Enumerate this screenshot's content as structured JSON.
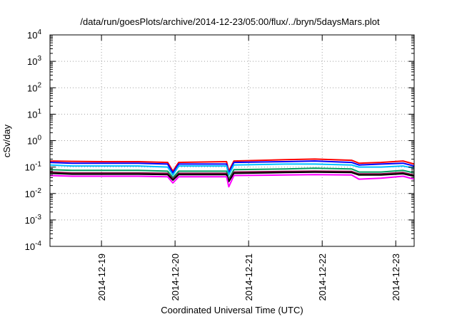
{
  "chart_data": {
    "type": "line",
    "title": "/data/run/goesPlots/archive/2014-12-23/05:00/flux/../bryn/5daysMars.plot",
    "xlabel": "Coordinated Universal Time (UTC)",
    "ylabel": "cSv/day",
    "yscale": "log",
    "ylim": [
      0.0001,
      10000
    ],
    "xlim": [
      18.3,
      23.25
    ],
    "y_ticks": [
      {
        "base": "10",
        "exp": "4",
        "value": 10000
      },
      {
        "base": "10",
        "exp": "3",
        "value": 1000
      },
      {
        "base": "10",
        "exp": "2",
        "value": 100
      },
      {
        "base": "10",
        "exp": "1",
        "value": 10
      },
      {
        "base": "10",
        "exp": "0",
        "value": 1
      },
      {
        "base": "10",
        "exp": "-1",
        "value": 0.1
      },
      {
        "base": "10",
        "exp": "-2",
        "value": 0.01
      },
      {
        "base": "10",
        "exp": "-3",
        "value": 0.001
      },
      {
        "base": "10",
        "exp": "-4",
        "value": 0.0001
      }
    ],
    "x_ticks": [
      {
        "label": "2014-12-19",
        "value": 19
      },
      {
        "label": "2014-12-20",
        "value": 20
      },
      {
        "label": "2014-12-21",
        "value": 21
      },
      {
        "label": "2014-12-22",
        "value": 22
      },
      {
        "label": "2014-12-23",
        "value": 23
      }
    ],
    "grid": true,
    "legend": "none",
    "x_units_note": "",
    "series": [
      {
        "color": "#ff0000",
        "values": [
          [
            18.3,
            0.17
          ],
          [
            18.6,
            0.165
          ],
          [
            19.0,
            0.16
          ],
          [
            19.5,
            0.16
          ],
          [
            19.9,
            0.15
          ],
          [
            19.97,
            0.07
          ],
          [
            20.05,
            0.15
          ],
          [
            20.7,
            0.16
          ],
          [
            20.73,
            0.07
          ],
          [
            20.8,
            0.17
          ],
          [
            21.5,
            0.19
          ],
          [
            21.9,
            0.2
          ],
          [
            22.4,
            0.18
          ],
          [
            22.5,
            0.14
          ],
          [
            22.8,
            0.15
          ],
          [
            23.1,
            0.17
          ],
          [
            23.25,
            0.13
          ]
        ]
      },
      {
        "color": "#0000ff",
        "values": [
          [
            18.3,
            0.15
          ],
          [
            18.6,
            0.14
          ],
          [
            19.0,
            0.14
          ],
          [
            19.5,
            0.14
          ],
          [
            19.9,
            0.13
          ],
          [
            19.97,
            0.06
          ],
          [
            20.05,
            0.13
          ],
          [
            20.7,
            0.13
          ],
          [
            20.73,
            0.06
          ],
          [
            20.8,
            0.15
          ],
          [
            21.5,
            0.16
          ],
          [
            21.9,
            0.17
          ],
          [
            22.4,
            0.15
          ],
          [
            22.5,
            0.12
          ],
          [
            22.8,
            0.13
          ],
          [
            23.1,
            0.14
          ],
          [
            23.25,
            0.11
          ]
        ]
      },
      {
        "color": "#00bfff",
        "values": [
          [
            18.3,
            0.12
          ],
          [
            18.6,
            0.11
          ],
          [
            19.0,
            0.11
          ],
          [
            19.5,
            0.11
          ],
          [
            19.9,
            0.1
          ],
          [
            19.97,
            0.05
          ],
          [
            20.05,
            0.11
          ],
          [
            20.7,
            0.11
          ],
          [
            20.73,
            0.05
          ],
          [
            20.8,
            0.12
          ],
          [
            21.5,
            0.13
          ],
          [
            21.9,
            0.13
          ],
          [
            22.4,
            0.12
          ],
          [
            22.5,
            0.1
          ],
          [
            22.8,
            0.1
          ],
          [
            23.1,
            0.11
          ],
          [
            23.25,
            0.09
          ]
        ]
      },
      {
        "color": "#00a060",
        "values": [
          [
            18.3,
            0.08
          ],
          [
            18.6,
            0.075
          ],
          [
            19.0,
            0.075
          ],
          [
            19.5,
            0.075
          ],
          [
            19.9,
            0.07
          ],
          [
            19.97,
            0.04
          ],
          [
            20.05,
            0.07
          ],
          [
            20.7,
            0.07
          ],
          [
            20.73,
            0.035
          ],
          [
            20.8,
            0.08
          ],
          [
            21.5,
            0.085
          ],
          [
            21.9,
            0.09
          ],
          [
            22.4,
            0.085
          ],
          [
            22.5,
            0.065
          ],
          [
            22.8,
            0.065
          ],
          [
            23.1,
            0.075
          ],
          [
            23.25,
            0.06
          ]
        ]
      },
      {
        "color": "#800040",
        "values": [
          [
            18.3,
            0.065
          ],
          [
            18.6,
            0.06
          ],
          [
            19.0,
            0.06
          ],
          [
            19.5,
            0.06
          ],
          [
            19.9,
            0.058
          ],
          [
            19.97,
            0.035
          ],
          [
            20.05,
            0.058
          ],
          [
            20.7,
            0.058
          ],
          [
            20.73,
            0.03
          ],
          [
            20.8,
            0.065
          ],
          [
            21.5,
            0.068
          ],
          [
            21.9,
            0.07
          ],
          [
            22.4,
            0.068
          ],
          [
            22.5,
            0.055
          ],
          [
            22.8,
            0.055
          ],
          [
            23.1,
            0.062
          ],
          [
            23.25,
            0.05
          ]
        ]
      },
      {
        "color": "#000000",
        "values": [
          [
            18.3,
            0.058
          ],
          [
            18.6,
            0.054
          ],
          [
            19.0,
            0.054
          ],
          [
            19.5,
            0.054
          ],
          [
            19.9,
            0.052
          ],
          [
            19.97,
            0.032
          ],
          [
            20.05,
            0.052
          ],
          [
            20.7,
            0.052
          ],
          [
            20.73,
            0.028
          ],
          [
            20.8,
            0.058
          ],
          [
            21.5,
            0.062
          ],
          [
            21.9,
            0.064
          ],
          [
            22.4,
            0.062
          ],
          [
            22.5,
            0.05
          ],
          [
            22.8,
            0.05
          ],
          [
            23.1,
            0.056
          ],
          [
            23.25,
            0.045
          ]
        ]
      },
      {
        "color": "#ff00ff",
        "values": [
          [
            18.3,
            0.048
          ],
          [
            18.6,
            0.045
          ],
          [
            19.0,
            0.045
          ],
          [
            19.5,
            0.045
          ],
          [
            19.9,
            0.043
          ],
          [
            19.97,
            0.025
          ],
          [
            20.05,
            0.043
          ],
          [
            20.7,
            0.043
          ],
          [
            20.73,
            0.018
          ],
          [
            20.8,
            0.048
          ],
          [
            21.5,
            0.05
          ],
          [
            21.9,
            0.052
          ],
          [
            22.4,
            0.05
          ],
          [
            22.5,
            0.035
          ],
          [
            22.8,
            0.038
          ],
          [
            23.1,
            0.045
          ],
          [
            23.25,
            0.035
          ]
        ]
      }
    ]
  }
}
